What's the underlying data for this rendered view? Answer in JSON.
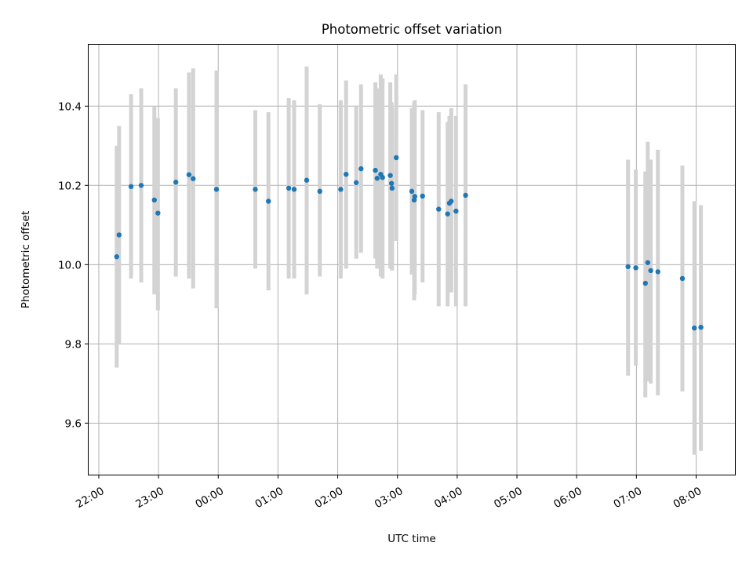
{
  "chart_data": {
    "type": "scatter",
    "title": "Photometric offset variation",
    "xlabel": "UTC time",
    "ylabel": "Photometric offset",
    "x_unit": "hours relative to 00:00 UTC",
    "xlim": [
      -2.17,
      8.65
    ],
    "ylim": [
      9.47,
      10.555
    ],
    "x_ticks": [
      {
        "value": -2,
        "label": "22:00"
      },
      {
        "value": -1,
        "label": "23:00"
      },
      {
        "value": 0,
        "label": "00:00"
      },
      {
        "value": 1,
        "label": "01:00"
      },
      {
        "value": 2,
        "label": "02:00"
      },
      {
        "value": 3,
        "label": "03:00"
      },
      {
        "value": 4,
        "label": "04:00"
      },
      {
        "value": 5,
        "label": "05:00"
      },
      {
        "value": 6,
        "label": "06:00"
      },
      {
        "value": 7,
        "label": "07:00"
      },
      {
        "value": 8,
        "label": "08:00"
      }
    ],
    "y_ticks": [
      {
        "value": 9.6,
        "label": "9.6"
      },
      {
        "value": 9.8,
        "label": "9.8"
      },
      {
        "value": 10.0,
        "label": "10.0"
      },
      {
        "value": 10.2,
        "label": "10.2"
      },
      {
        "value": 10.4,
        "label": "10.4"
      }
    ],
    "grid": true,
    "point_color": "#1f77b4",
    "errorbar_color": "#d3d3d3",
    "points": [
      {
        "x": -1.7,
        "y": 10.02,
        "lo": 9.74,
        "hi": 10.3
      },
      {
        "x": -1.66,
        "y": 10.075,
        "lo": 9.8,
        "hi": 10.35
      },
      {
        "x": -1.46,
        "y": 10.197,
        "lo": 9.965,
        "hi": 10.43
      },
      {
        "x": -1.29,
        "y": 10.2,
        "lo": 9.955,
        "hi": 10.445
      },
      {
        "x": -1.07,
        "y": 10.163,
        "lo": 9.925,
        "hi": 10.4
      },
      {
        "x": -1.01,
        "y": 10.13,
        "lo": 9.885,
        "hi": 10.37
      },
      {
        "x": -0.71,
        "y": 10.208,
        "lo": 9.97,
        "hi": 10.445
      },
      {
        "x": -0.49,
        "y": 10.227,
        "lo": 9.965,
        "hi": 10.485
      },
      {
        "x": -0.42,
        "y": 10.217,
        "lo": 9.94,
        "hi": 10.495
      },
      {
        "x": -0.03,
        "y": 10.19,
        "lo": 9.89,
        "hi": 10.49
      },
      {
        "x": 0.62,
        "y": 10.19,
        "lo": 9.99,
        "hi": 10.39
      },
      {
        "x": 0.84,
        "y": 10.16,
        "lo": 9.935,
        "hi": 10.385
      },
      {
        "x": 1.18,
        "y": 10.193,
        "lo": 9.965,
        "hi": 10.42
      },
      {
        "x": 1.27,
        "y": 10.19,
        "lo": 9.965,
        "hi": 10.415
      },
      {
        "x": 1.48,
        "y": 10.213,
        "lo": 9.925,
        "hi": 10.5
      },
      {
        "x": 1.7,
        "y": 10.185,
        "lo": 9.97,
        "hi": 10.405
      },
      {
        "x": 2.05,
        "y": 10.19,
        "lo": 9.965,
        "hi": 10.415
      },
      {
        "x": 2.14,
        "y": 10.228,
        "lo": 9.99,
        "hi": 10.465
      },
      {
        "x": 2.31,
        "y": 10.207,
        "lo": 10.015,
        "hi": 10.4
      },
      {
        "x": 2.39,
        "y": 10.242,
        "lo": 10.03,
        "hi": 10.455
      },
      {
        "x": 2.63,
        "y": 10.238,
        "lo": 10.015,
        "hi": 10.46
      },
      {
        "x": 2.66,
        "y": 10.218,
        "lo": 9.99,
        "hi": 10.445
      },
      {
        "x": 2.72,
        "y": 10.228,
        "lo": 9.97,
        "hi": 10.48
      },
      {
        "x": 2.75,
        "y": 10.22,
        "lo": 9.965,
        "hi": 10.47
      },
      {
        "x": 2.88,
        "y": 10.225,
        "lo": 9.99,
        "hi": 10.46
      },
      {
        "x": 2.9,
        "y": 10.205,
        "lo": 9.995,
        "hi": 10.41
      },
      {
        "x": 2.91,
        "y": 10.193,
        "lo": 9.985,
        "hi": 10.395
      },
      {
        "x": 2.98,
        "y": 10.27,
        "lo": 10.06,
        "hi": 10.48
      },
      {
        "x": 3.24,
        "y": 10.185,
        "lo": 9.975,
        "hi": 10.395
      },
      {
        "x": 3.28,
        "y": 10.163,
        "lo": 9.91,
        "hi": 10.41
      },
      {
        "x": 3.29,
        "y": 10.172,
        "lo": 9.925,
        "hi": 10.415
      },
      {
        "x": 3.42,
        "y": 10.173,
        "lo": 9.955,
        "hi": 10.39
      },
      {
        "x": 3.69,
        "y": 10.14,
        "lo": 9.895,
        "hi": 10.385
      },
      {
        "x": 3.84,
        "y": 10.128,
        "lo": 9.895,
        "hi": 10.36
      },
      {
        "x": 3.87,
        "y": 10.155,
        "lo": 9.935,
        "hi": 10.375
      },
      {
        "x": 3.9,
        "y": 10.16,
        "lo": 9.93,
        "hi": 10.395
      },
      {
        "x": 3.98,
        "y": 10.135,
        "lo": 9.895,
        "hi": 10.375
      },
      {
        "x": 4.14,
        "y": 10.175,
        "lo": 9.895,
        "hi": 10.455
      },
      {
        "x": 6.86,
        "y": 9.995,
        "lo": 9.72,
        "hi": 10.265
      },
      {
        "x": 6.99,
        "y": 9.992,
        "lo": 9.745,
        "hi": 10.24
      },
      {
        "x": 7.15,
        "y": 9.953,
        "lo": 9.665,
        "hi": 10.235
      },
      {
        "x": 7.19,
        "y": 10.005,
        "lo": 9.705,
        "hi": 10.31
      },
      {
        "x": 7.24,
        "y": 9.985,
        "lo": 9.7,
        "hi": 10.265
      },
      {
        "x": 7.36,
        "y": 9.982,
        "lo": 9.67,
        "hi": 10.29
      },
      {
        "x": 7.77,
        "y": 9.965,
        "lo": 9.68,
        "hi": 10.25
      },
      {
        "x": 7.97,
        "y": 9.84,
        "lo": 9.52,
        "hi": 10.16
      },
      {
        "x": 8.08,
        "y": 9.842,
        "lo": 9.53,
        "hi": 10.15
      }
    ]
  }
}
